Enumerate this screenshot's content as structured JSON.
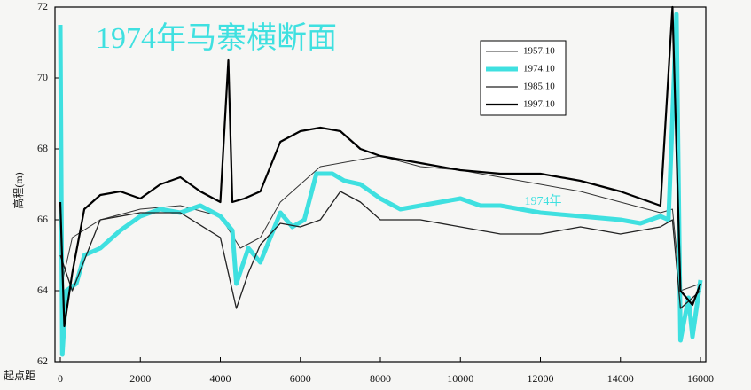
{
  "chart_data": {
    "type": "line",
    "title": "1974年马寨横断面",
    "y_label": "高程(m)",
    "x_label": "起点距",
    "annotation": {
      "text": "1974年",
      "x": 11600,
      "y": 66.5
    },
    "xlim": [
      0,
      16000
    ],
    "xticks": [
      0,
      2000,
      4000,
      6000,
      8000,
      10000,
      12000,
      14000,
      16000
    ],
    "ylim": [
      62,
      72
    ],
    "yticks": [
      62,
      64,
      66,
      68,
      70,
      72
    ],
    "legend": "upper right",
    "series": [
      {
        "name": "1957.10",
        "color": "#333333",
        "x": [
          0,
          300,
          1000,
          2000,
          3000,
          4000,
          4500,
          5000,
          5500,
          6000,
          6500,
          7000,
          8000,
          9000,
          10000,
          11000,
          12000,
          13000,
          14000,
          15000,
          15300,
          15500,
          16000
        ],
        "values": [
          64,
          65.5,
          66,
          66.3,
          66.4,
          66.1,
          65.2,
          65.5,
          66.5,
          67,
          67.5,
          67.6,
          67.8,
          67.5,
          67.4,
          67.2,
          67,
          66.8,
          66.5,
          66.2,
          66.3,
          64,
          64.2
        ]
      },
      {
        "name": "1974.10",
        "color": "#3fe0e0",
        "x": [
          0,
          50,
          150,
          400,
          600,
          1000,
          1500,
          2000,
          2500,
          3000,
          3500,
          4000,
          4300,
          4400,
          4700,
          5000,
          5500,
          5800,
          6100,
          6400,
          6800,
          7100,
          7500,
          8000,
          8500,
          9000,
          9500,
          10000,
          10500,
          11000,
          12000,
          13000,
          14000,
          14500,
          15000,
          15200,
          15400,
          15500,
          15700,
          15800,
          16000
        ],
        "values": [
          71.5,
          62.2,
          64,
          64.2,
          65,
          65.2,
          65.7,
          66.1,
          66.3,
          66.2,
          66.4,
          66.1,
          65.7,
          64.2,
          65.2,
          64.8,
          66.2,
          65.8,
          66,
          67.3,
          67.3,
          67.1,
          67,
          66.6,
          66.3,
          66.4,
          66.5,
          66.6,
          66.4,
          66.4,
          66.2,
          66.1,
          66,
          65.9,
          66.1,
          66,
          71.8,
          62.6,
          63.8,
          62.7,
          64.3
        ]
      },
      {
        "name": "1985.10",
        "color": "#222222",
        "x": [
          0,
          300,
          1000,
          2000,
          3000,
          4000,
          4400,
          4700,
          5000,
          5500,
          6000,
          6500,
          7000,
          7500,
          8000,
          9000,
          10000,
          11000,
          12000,
          13000,
          14000,
          15000,
          15300,
          15500,
          16000
        ],
        "values": [
          65,
          64,
          66,
          66.2,
          66.2,
          65.5,
          63.5,
          64.5,
          65.3,
          65.9,
          65.8,
          66,
          66.8,
          66.5,
          66,
          66,
          65.8,
          65.6,
          65.6,
          65.8,
          65.6,
          65.8,
          66,
          63.5,
          64
        ]
      },
      {
        "name": "1997.10",
        "color": "#000000",
        "x": [
          0,
          100,
          300,
          600,
          1000,
          1500,
          2000,
          2500,
          3000,
          3500,
          4000,
          4200,
          4300,
          4600,
          5000,
          5500,
          6000,
          6500,
          7000,
          7500,
          8000,
          9000,
          10000,
          11000,
          12000,
          13000,
          14000,
          15000,
          15300,
          15500,
          15800,
          16000
        ],
        "values": [
          66.5,
          63,
          64.5,
          66.3,
          66.7,
          66.8,
          66.6,
          67,
          67.2,
          66.8,
          66.5,
          70.5,
          66.5,
          66.6,
          66.8,
          68.2,
          68.5,
          68.6,
          68.5,
          68,
          67.8,
          67.6,
          67.4,
          67.3,
          67.3,
          67.1,
          66.8,
          66.4,
          72,
          64,
          63.6,
          64.2
        ]
      }
    ]
  }
}
